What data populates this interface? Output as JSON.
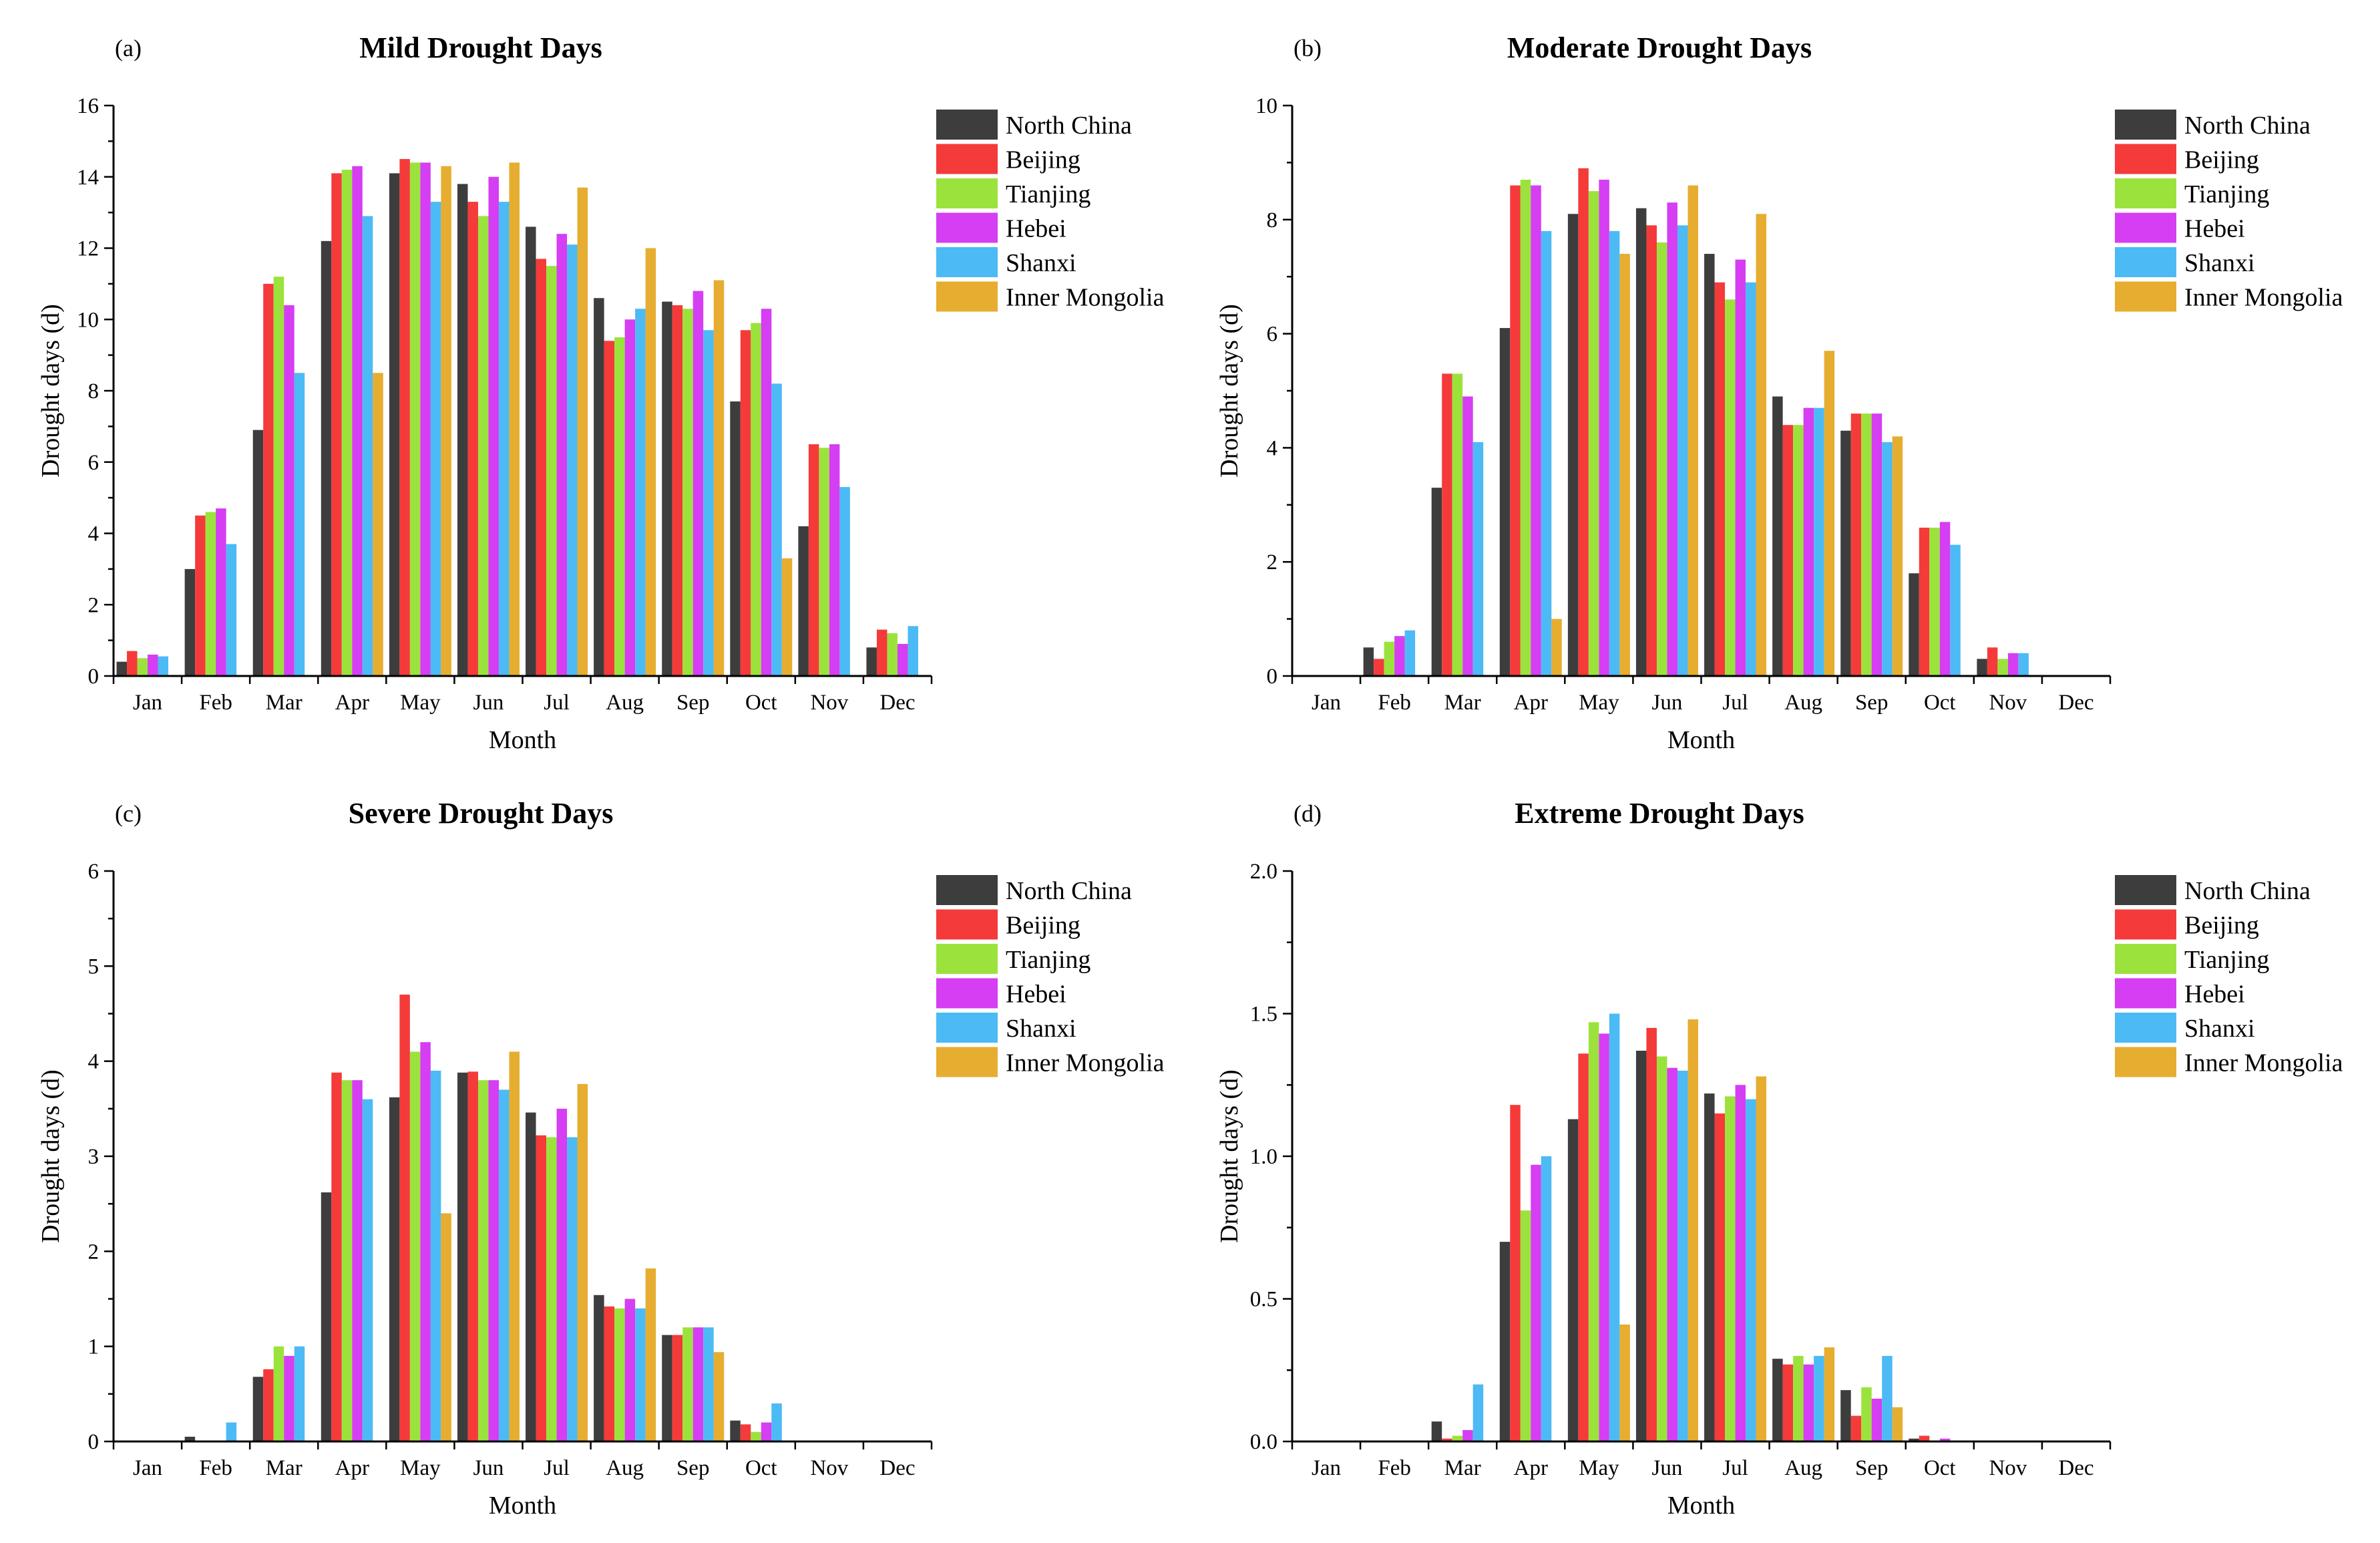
{
  "chart_data": [
    {
      "type": "bar",
      "panel": "(a)",
      "title": "Mild Drought Days",
      "xlabel": "Month",
      "ylabel": "Drought days (d)",
      "ylim": [
        0,
        16
      ],
      "yticks": [
        0,
        2,
        4,
        6,
        8,
        10,
        12,
        14,
        16
      ],
      "ytick_labels": [
        "0",
        "2",
        "4",
        "6",
        "8",
        "10",
        "12",
        "14",
        "16"
      ],
      "categories": [
        "Jan",
        "Feb",
        "Mar",
        "Apr",
        "May",
        "Jun",
        "Jul",
        "Aug",
        "Sep",
        "Oct",
        "Nov",
        "Dec"
      ],
      "legend_position": "top-right",
      "grid": false,
      "series": [
        {
          "name": "North China",
          "color": "#3d3d3d",
          "values": [
            0.4,
            3.0,
            6.9,
            12.2,
            14.1,
            13.8,
            12.6,
            10.6,
            10.5,
            7.7,
            4.2,
            0.8
          ]
        },
        {
          "name": "Beijing",
          "color": "#f53a3a",
          "values": [
            0.7,
            4.5,
            11.0,
            14.1,
            14.5,
            13.3,
            11.7,
            9.4,
            10.4,
            9.7,
            6.5,
            1.3
          ]
        },
        {
          "name": "Tianjing",
          "color": "#9be33c",
          "values": [
            0.5,
            4.6,
            11.2,
            14.2,
            14.4,
            12.9,
            11.5,
            9.5,
            10.3,
            9.9,
            6.4,
            1.2
          ]
        },
        {
          "name": "Hebei",
          "color": "#d53ef2",
          "values": [
            0.6,
            4.7,
            10.4,
            14.3,
            14.4,
            14.0,
            12.4,
            10.0,
            10.8,
            10.3,
            6.5,
            0.9
          ]
        },
        {
          "name": "Shanxi",
          "color": "#4cbaf5",
          "values": [
            0.55,
            3.7,
            8.5,
            12.9,
            13.3,
            13.3,
            12.1,
            10.3,
            9.7,
            8.2,
            5.3,
            1.4
          ]
        },
        {
          "name": "Inner Mongolia",
          "color": "#e6ad30",
          "values": [
            0.0,
            0.0,
            0.0,
            8.5,
            14.3,
            14.4,
            13.7,
            12.0,
            11.1,
            3.3,
            0.0,
            0.0
          ]
        }
      ]
    },
    {
      "type": "bar",
      "panel": "(b)",
      "title": "Moderate Drought Days",
      "xlabel": "Month",
      "ylabel": "Drought days (d)",
      "ylim": [
        0,
        10
      ],
      "yticks": [
        0,
        2,
        4,
        6,
        8,
        10
      ],
      "ytick_labels": [
        "0",
        "2",
        "4",
        "6",
        "8",
        "10"
      ],
      "categories": [
        "Jan",
        "Feb",
        "Mar",
        "Apr",
        "May",
        "Jun",
        "Jul",
        "Aug",
        "Sep",
        "Oct",
        "Nov",
        "Dec"
      ],
      "legend_position": "top-right",
      "grid": false,
      "series": [
        {
          "name": "North China",
          "color": "#3d3d3d",
          "values": [
            0.0,
            0.5,
            3.3,
            6.1,
            8.1,
            8.2,
            7.4,
            4.9,
            4.3,
            1.8,
            0.3,
            0.0
          ]
        },
        {
          "name": "Beijing",
          "color": "#f53a3a",
          "values": [
            0.0,
            0.3,
            5.3,
            8.6,
            8.9,
            7.9,
            6.9,
            4.4,
            4.6,
            2.6,
            0.5,
            0.0
          ]
        },
        {
          "name": "Tianjing",
          "color": "#9be33c",
          "values": [
            0.0,
            0.6,
            5.3,
            8.7,
            8.5,
            7.6,
            6.6,
            4.4,
            4.6,
            2.6,
            0.3,
            0.0
          ]
        },
        {
          "name": "Hebei",
          "color": "#d53ef2",
          "values": [
            0.0,
            0.7,
            4.9,
            8.6,
            8.7,
            8.3,
            7.3,
            4.7,
            4.6,
            2.7,
            0.4,
            0.0
          ]
        },
        {
          "name": "Shanxi",
          "color": "#4cbaf5",
          "values": [
            0.0,
            0.8,
            4.1,
            7.8,
            7.8,
            7.9,
            6.9,
            4.7,
            4.1,
            2.3,
            0.4,
            0.0
          ]
        },
        {
          "name": "Inner Mongolia",
          "color": "#e6ad30",
          "values": [
            0.0,
            0.0,
            0.0,
            1.0,
            7.4,
            8.6,
            8.1,
            5.7,
            4.2,
            0.0,
            0.0,
            0.0
          ]
        }
      ]
    },
    {
      "type": "bar",
      "panel": "(c)",
      "title": "Severe Drought Days",
      "xlabel": "Month",
      "ylabel": "Drought days (d)",
      "ylim": [
        0,
        6
      ],
      "yticks": [
        0,
        1,
        2,
        3,
        4,
        5,
        6
      ],
      "ytick_labels": [
        "0",
        "1",
        "2",
        "3",
        "4",
        "5",
        "6"
      ],
      "categories": [
        "Jan",
        "Feb",
        "Mar",
        "Apr",
        "May",
        "Jun",
        "Jul",
        "Aug",
        "Sep",
        "Oct",
        "Nov",
        "Dec"
      ],
      "legend_position": "top-right",
      "grid": false,
      "series": [
        {
          "name": "North China",
          "color": "#3d3d3d",
          "values": [
            0.0,
            0.05,
            0.68,
            2.62,
            3.62,
            3.88,
            3.46,
            1.54,
            1.12,
            0.22,
            0.0,
            0.0
          ]
        },
        {
          "name": "Beijing",
          "color": "#f53a3a",
          "values": [
            0.0,
            0.0,
            0.76,
            3.88,
            4.7,
            3.89,
            3.22,
            1.42,
            1.12,
            0.18,
            0.0,
            0.0
          ]
        },
        {
          "name": "Tianjing",
          "color": "#9be33c",
          "values": [
            0.0,
            0.0,
            1.0,
            3.8,
            4.1,
            3.8,
            3.2,
            1.4,
            1.2,
            0.1,
            0.0,
            0.0
          ]
        },
        {
          "name": "Hebei",
          "color": "#d53ef2",
          "values": [
            0.0,
            0.0,
            0.9,
            3.8,
            4.2,
            3.8,
            3.5,
            1.5,
            1.2,
            0.2,
            0.0,
            0.0
          ]
        },
        {
          "name": "Shanxi",
          "color": "#4cbaf5",
          "values": [
            0.0,
            0.2,
            1.0,
            3.6,
            3.9,
            3.7,
            3.2,
            1.4,
            1.2,
            0.4,
            0.0,
            0.0
          ]
        },
        {
          "name": "Inner Mongolia",
          "color": "#e6ad30",
          "values": [
            0.0,
            0.0,
            0.0,
            0.0,
            2.4,
            4.1,
            3.76,
            1.82,
            0.94,
            0.0,
            0.0,
            0.0
          ]
        }
      ]
    },
    {
      "type": "bar",
      "panel": "(d)",
      "title": "Extreme Drought Days",
      "xlabel": "Month",
      "ylabel": "Drought days (d)",
      "ylim": [
        0,
        2.0
      ],
      "yticks": [
        0,
        0.5,
        1.0,
        1.5,
        2.0
      ],
      "ytick_labels": [
        "0.0",
        "0.5",
        "1.0",
        "1.5",
        "2.0"
      ],
      "categories": [
        "Jan",
        "Feb",
        "Mar",
        "Apr",
        "May",
        "Jun",
        "Jul",
        "Aug",
        "Sep",
        "Oct",
        "Nov",
        "Dec"
      ],
      "legend_position": "top-right",
      "grid": false,
      "series": [
        {
          "name": "North China",
          "color": "#3d3d3d",
          "values": [
            0.0,
            0.0,
            0.07,
            0.7,
            1.13,
            1.37,
            1.22,
            0.29,
            0.18,
            0.01,
            0.0,
            0.0
          ]
        },
        {
          "name": "Beijing",
          "color": "#f53a3a",
          "values": [
            0.0,
            0.0,
            0.01,
            1.18,
            1.36,
            1.45,
            1.15,
            0.27,
            0.09,
            0.02,
            0.0,
            0.0
          ]
        },
        {
          "name": "Tianjing",
          "color": "#9be33c",
          "values": [
            0.0,
            0.0,
            0.02,
            0.81,
            1.47,
            1.35,
            1.21,
            0.3,
            0.19,
            0.0,
            0.0,
            0.0
          ]
        },
        {
          "name": "Hebei",
          "color": "#d53ef2",
          "values": [
            0.0,
            0.0,
            0.04,
            0.97,
            1.43,
            1.31,
            1.25,
            0.27,
            0.15,
            0.01,
            0.0,
            0.0
          ]
        },
        {
          "name": "Shanxi",
          "color": "#4cbaf5",
          "values": [
            0.0,
            0.0,
            0.2,
            1.0,
            1.5,
            1.3,
            1.2,
            0.3,
            0.3,
            0.0,
            0.0,
            0.0
          ]
        },
        {
          "name": "Inner Mongolia",
          "color": "#e6ad30",
          "values": [
            0.0,
            0.0,
            0.0,
            0.0,
            0.41,
            1.48,
            1.28,
            0.33,
            0.12,
            0.0,
            0.0,
            0.0
          ]
        }
      ]
    }
  ]
}
